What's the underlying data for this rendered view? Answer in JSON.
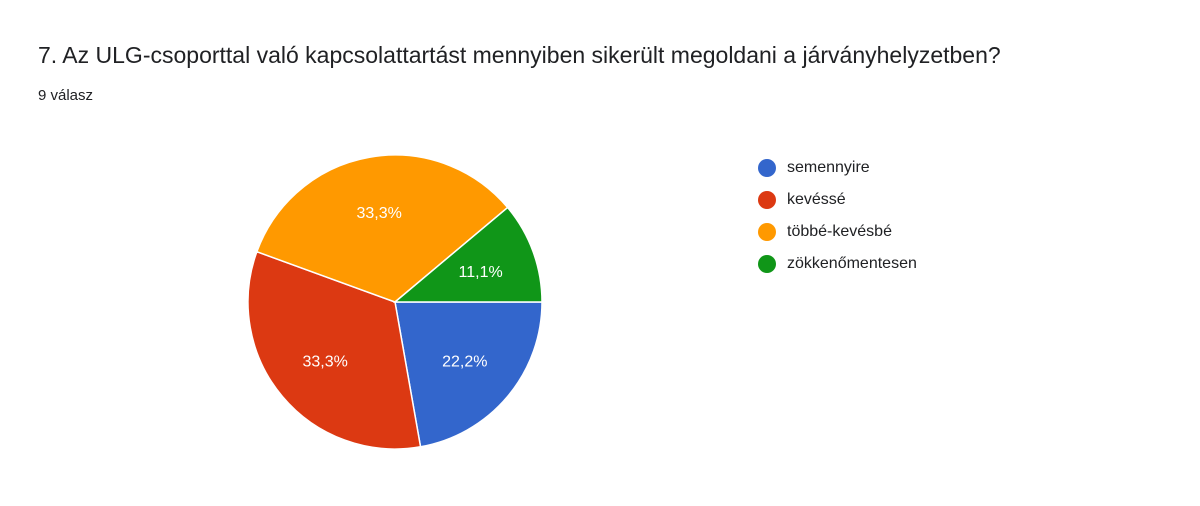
{
  "title": "7. Az ULG-csoporttal való kapcsolattartást mennyiben sikerült megoldani a járványhelyzetben?",
  "subtitle": "9 válasz",
  "chart_data": {
    "type": "pie",
    "categories": [
      "semennyire",
      "kevéssé",
      "többé-kevésbé",
      "zökkenőmentesen"
    ],
    "values": [
      22.2,
      33.3,
      33.3,
      11.1
    ],
    "counts": [
      2,
      3,
      3,
      1
    ],
    "labels": [
      "22,2%",
      "33,3%",
      "33,3%",
      "11,1%"
    ],
    "colors": [
      "#3366cc",
      "#dc3912",
      "#ff9900",
      "#109618"
    ],
    "legend_position": "right"
  }
}
